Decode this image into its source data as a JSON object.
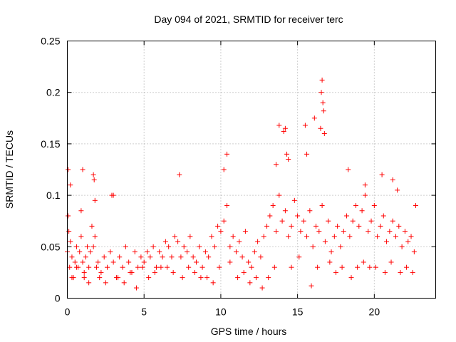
{
  "chart_data": {
    "type": "scatter",
    "title": "Day 094 of 2021, SRMTID for receiver terc",
    "xlabel": "GPS time / hours",
    "ylabel": "SRMTID / TECUs",
    "xlim": [
      0,
      24
    ],
    "ylim": [
      0,
      0.25
    ],
    "xticks": [
      0,
      5,
      10,
      15,
      20
    ],
    "xtick_labels": [
      "0",
      "5",
      "10",
      "15",
      "20"
    ],
    "yticks": [
      0,
      0.05,
      0.1,
      0.15,
      0.2,
      0.25
    ],
    "ytick_labels": [
      "0",
      "0.05",
      "0.1",
      "0.15",
      "0.2",
      "0.25"
    ],
    "grid": true,
    "legend": "none",
    "marker": "+",
    "series": [
      {
        "name": "SRMTID",
        "color": "#ff0000",
        "x": [
          0.0,
          0.05,
          0.1,
          0.15,
          0.2,
          0.3,
          0.4,
          0.5,
          0.6,
          0.7,
          0.8,
          0.9,
          1.0,
          1.1,
          1.2,
          1.3,
          1.4,
          1.5,
          1.6,
          1.7,
          1.8,
          1.9,
          2.0,
          2.2,
          2.4,
          2.6,
          2.8,
          3.0,
          3.2,
          3.4,
          3.6,
          3.8,
          4.0,
          4.2,
          4.4,
          4.6,
          4.8,
          5.0,
          5.2,
          5.4,
          5.6,
          5.8,
          6.0,
          6.2,
          6.4,
          6.6,
          6.8,
          7.0,
          7.2,
          7.4,
          7.6,
          7.8,
          8.0,
          8.2,
          8.4,
          8.6,
          8.8,
          9.0,
          9.2,
          9.4,
          9.6,
          9.8,
          10.0,
          10.2,
          10.4,
          10.6,
          10.8,
          11.0,
          11.2,
          11.4,
          11.6,
          11.8,
          12.0,
          12.2,
          12.4,
          12.6,
          12.8,
          13.0,
          13.2,
          13.4,
          13.6,
          13.8,
          14.0,
          14.2,
          14.4,
          14.6,
          14.8,
          15.0,
          15.2,
          15.4,
          15.6,
          15.8,
          16.0,
          16.2,
          16.4,
          16.6,
          16.8,
          17.0,
          17.2,
          17.4,
          17.6,
          17.8,
          18.0,
          18.2,
          18.4,
          18.6,
          18.8,
          19.0,
          19.2,
          19.4,
          19.6,
          19.8,
          20.0,
          20.2,
          20.4,
          20.6,
          20.8,
          21.0,
          21.2,
          21.4,
          21.6,
          21.8,
          22.0,
          22.2,
          22.4,
          22.6,
          0.05,
          0.2,
          0.9,
          1.0,
          1.7,
          1.75,
          1.8,
          2.9,
          3.0,
          7.3,
          10.2,
          10.4,
          13.6,
          13.8,
          14.1,
          14.2,
          14.3,
          14.4,
          15.5,
          15.6,
          16.1,
          16.5,
          16.55,
          16.6,
          16.65,
          16.7,
          16.75,
          18.3,
          19.4,
          20.5,
          21.2,
          21.5,
          22.7,
          0.3,
          0.6,
          1.1,
          1.4,
          2.1,
          2.5,
          3.3,
          3.7,
          4.1,
          4.5,
          4.9,
          5.3,
          5.7,
          6.1,
          6.5,
          6.9,
          7.5,
          7.9,
          8.3,
          8.7,
          9.1,
          9.5,
          9.9,
          10.6,
          11.1,
          11.5,
          11.9,
          12.3,
          12.7,
          13.1,
          13.5,
          14.6,
          15.1,
          15.9,
          16.3,
          17.1,
          17.5,
          17.9,
          18.5,
          18.9,
          19.3,
          19.7,
          20.1,
          20.7,
          21.1,
          21.7,
          22.1,
          22.5
        ],
        "y": [
          0.045,
          0.08,
          0.065,
          0.03,
          0.055,
          0.04,
          0.02,
          0.035,
          0.05,
          0.03,
          0.045,
          0.06,
          0.035,
          0.025,
          0.04,
          0.05,
          0.03,
          0.045,
          0.07,
          0.05,
          0.06,
          0.03,
          0.035,
          0.025,
          0.04,
          0.03,
          0.045,
          0.035,
          0.02,
          0.04,
          0.03,
          0.05,
          0.035,
          0.025,
          0.045,
          0.03,
          0.04,
          0.035,
          0.045,
          0.04,
          0.05,
          0.03,
          0.045,
          0.04,
          0.055,
          0.05,
          0.04,
          0.06,
          0.055,
          0.04,
          0.05,
          0.045,
          0.06,
          0.04,
          0.035,
          0.05,
          0.03,
          0.045,
          0.04,
          0.06,
          0.05,
          0.07,
          0.065,
          0.075,
          0.09,
          0.05,
          0.06,
          0.045,
          0.055,
          0.04,
          0.065,
          0.035,
          0.03,
          0.045,
          0.055,
          0.04,
          0.06,
          0.07,
          0.08,
          0.09,
          0.065,
          0.1,
          0.075,
          0.085,
          0.06,
          0.07,
          0.095,
          0.08,
          0.065,
          0.075,
          0.06,
          0.085,
          0.05,
          0.07,
          0.065,
          0.09,
          0.055,
          0.075,
          0.045,
          0.06,
          0.07,
          0.05,
          0.065,
          0.08,
          0.06,
          0.075,
          0.09,
          0.07,
          0.085,
          0.1,
          0.065,
          0.075,
          0.09,
          0.06,
          0.07,
          0.08,
          0.055,
          0.065,
          0.075,
          0.06,
          0.07,
          0.05,
          0.065,
          0.055,
          0.06,
          0.045,
          0.125,
          0.11,
          0.085,
          0.125,
          0.12,
          0.115,
          0.095,
          0.1,
          0.1,
          0.12,
          0.125,
          0.14,
          0.13,
          0.168,
          0.162,
          0.165,
          0.14,
          0.135,
          0.168,
          0.14,
          0.175,
          0.165,
          0.2,
          0.212,
          0.19,
          0.182,
          0.16,
          0.125,
          0.11,
          0.12,
          0.115,
          0.105,
          0.09,
          0.02,
          0.03,
          0.02,
          0.015,
          0.02,
          0.015,
          0.02,
          0.015,
          0.025,
          0.01,
          0.03,
          0.02,
          0.025,
          0.03,
          0.03,
          0.025,
          0.02,
          0.03,
          0.025,
          0.02,
          0.02,
          0.015,
          0.03,
          0.035,
          0.02,
          0.025,
          0.015,
          0.02,
          0.01,
          0.02,
          0.03,
          0.03,
          0.04,
          0.012,
          0.03,
          0.035,
          0.025,
          0.03,
          0.02,
          0.03,
          0.035,
          0.03,
          0.03,
          0.025,
          0.035,
          0.025,
          0.03,
          0.025
        ]
      }
    ]
  }
}
